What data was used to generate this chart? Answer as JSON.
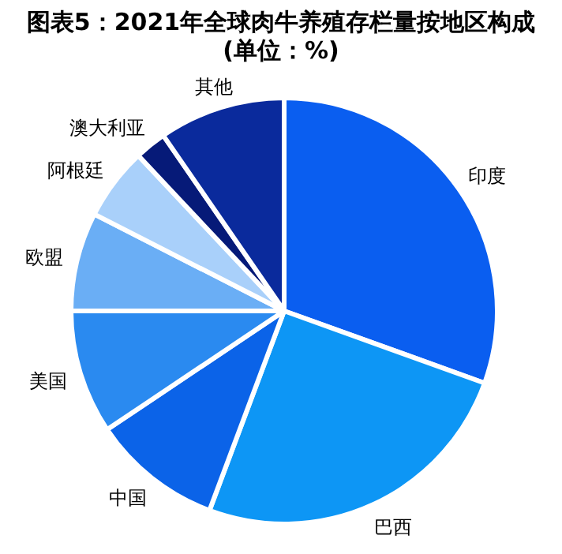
{
  "chart_data": {
    "type": "pie",
    "title": "图表5：2021年全球肉牛养殖存栏量按地区构成",
    "subtitle": "(单位：%)",
    "categories": [
      "印度",
      "巴西",
      "中国",
      "美国",
      "欧盟",
      "阿根廷",
      "澳大利亚",
      "其他"
    ],
    "values": [
      30.5,
      25.2,
      9.9,
      9.4,
      7.5,
      5.5,
      2.4,
      9.6
    ],
    "colors": [
      "#0a5ef0",
      "#0d96f5",
      "#0b63e8",
      "#2a8af0",
      "#6aaef5",
      "#a9d0fa",
      "#061a78",
      "#0a2a9c"
    ]
  }
}
